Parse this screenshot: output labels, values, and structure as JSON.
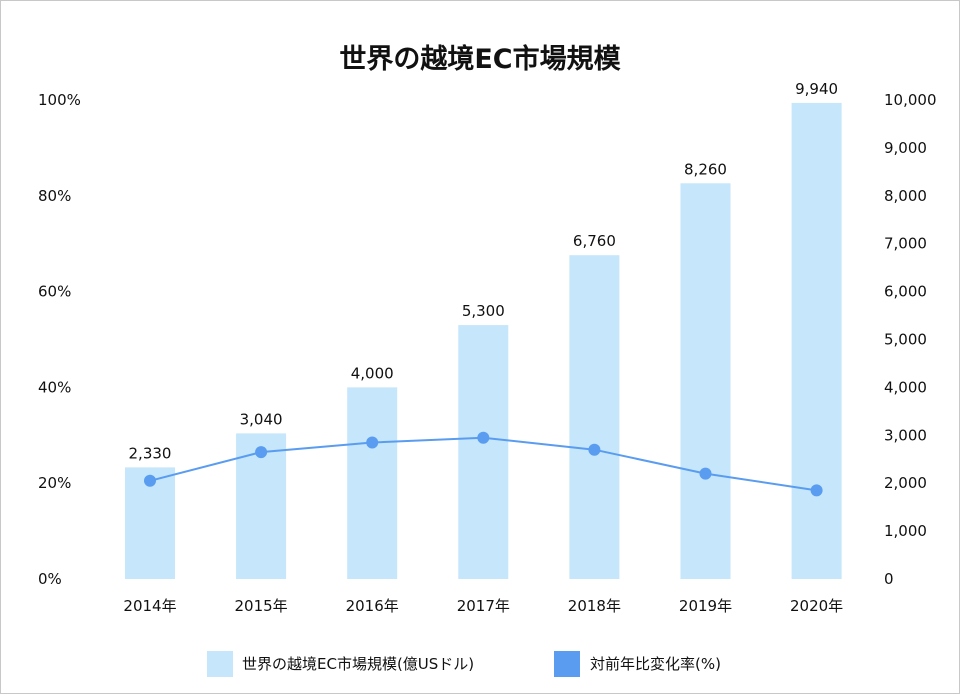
{
  "chart_data": {
    "type": "bar",
    "title": "世界の越境EC市場規模",
    "categories": [
      "2014年",
      "2015年",
      "2016年",
      "2017年",
      "2018年",
      "2019年",
      "2020年"
    ],
    "series": [
      {
        "name": "世界の越境EC市場規模(億USドル)",
        "type": "bar",
        "axis": "right",
        "values": [
          2330,
          3040,
          4000,
          5300,
          6760,
          8260,
          9940
        ],
        "labels": [
          "2,330",
          "3,040",
          "4,000",
          "5,300",
          "6,760",
          "8,260",
          "9,940"
        ],
        "color": "#c5e6fb"
      },
      {
        "name": "対前年比変化率(%)",
        "type": "line",
        "axis": "left",
        "values": [
          20.5,
          26.5,
          28.5,
          29.5,
          27,
          22,
          18.5
        ],
        "color": "#5a9cef"
      }
    ],
    "y_left": {
      "min": 0,
      "max": 100,
      "ticks": [
        0,
        20,
        40,
        60,
        80,
        100
      ],
      "tick_labels": [
        "0%",
        "20%",
        "40%",
        "60%",
        "80%",
        "100%"
      ]
    },
    "y_right": {
      "min": 0,
      "max": 10000,
      "ticks": [
        0,
        1000,
        2000,
        3000,
        4000,
        5000,
        6000,
        7000,
        8000,
        9000,
        10000
      ],
      "tick_labels": [
        "0",
        "1,000",
        "2,000",
        "3,000",
        "4,000",
        "5,000",
        "6,000",
        "7,000",
        "8,000",
        "9,000",
        "10,000"
      ]
    },
    "grid": false,
    "legend_position": "bottom"
  }
}
